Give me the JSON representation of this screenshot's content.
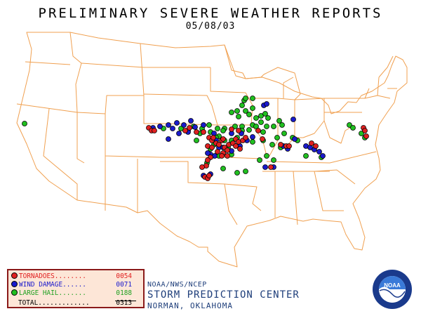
{
  "header": {
    "title": "PRELIMINARY SEVERE WEATHER REPORTS",
    "date": "05/08/03"
  },
  "legend": {
    "items": [
      {
        "label": "TORNADOES........",
        "count": "0054",
        "color": "#e02020"
      },
      {
        "label": "WIND DAMAGE......",
        "count": "0071",
        "color": "#1a1acc"
      },
      {
        "label": "LARGE HAIL.......",
        "count": "0188",
        "color": "#20c020"
      }
    ],
    "total_label": "TOTAL.............",
    "total_count": "0313"
  },
  "credit": {
    "line1": "NOAA/NWS/NCEP",
    "line2": "STORM PREDICTION CENTER",
    "line3": "NORMAN, OKLAHOMA"
  },
  "logo": {
    "text": "NOAA"
  },
  "colors": {
    "border": "#f0a050",
    "background": "#ffffff",
    "tornado": "#e02020",
    "wind": "#1a1acc",
    "hail": "#20c020",
    "legend_fill": "#fde6d7",
    "legend_border": "#8b1a1a",
    "credit_text": "#1e3e7a"
  }
}
